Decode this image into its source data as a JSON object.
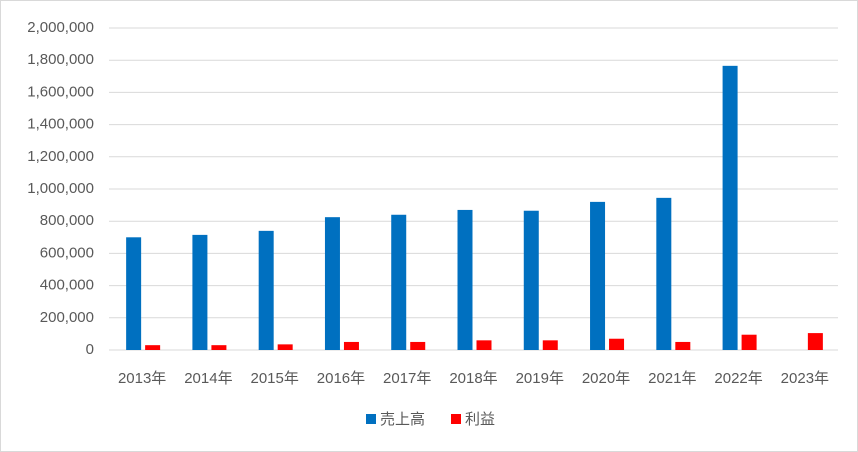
{
  "chart_data": {
    "type": "bar",
    "categories": [
      "2013年",
      "2014年",
      "2015年",
      "2016年",
      "2017年",
      "2018年",
      "2019年",
      "2020年",
      "2021年",
      "2022年",
      "2023年"
    ],
    "series": [
      {
        "name": "売上高",
        "color": "#0070c0",
        "values": [
          700000,
          715000,
          740000,
          825000,
          840000,
          870000,
          865000,
          920000,
          945000,
          1765000,
          null
        ]
      },
      {
        "name": "利益",
        "color": "#ff0000",
        "values": [
          30000,
          30000,
          35000,
          50000,
          50000,
          60000,
          60000,
          70000,
          50000,
          95000,
          105000
        ]
      }
    ],
    "ylim": [
      0,
      2000000
    ],
    "yticks": [
      0,
      {
        "value": 200000,
        "label": "200,000"
      },
      {
        "value": 400000,
        "label": "400,000"
      },
      {
        "value": 600000,
        "label": "600,000"
      },
      {
        "value": 800000,
        "label": "800,000"
      },
      {
        "value": 1000000,
        "label": "1,000,000"
      },
      {
        "value": 1200000,
        "label": "1,200,000"
      },
      {
        "value": 1400000,
        "label": "1,400,000"
      },
      {
        "value": 1600000,
        "label": "1,600,000"
      },
      {
        "value": 1800000,
        "label": "1,800,000"
      },
      {
        "value": 2000000,
        "label": "2,000,000"
      }
    ],
    "grid": true,
    "legend": "bottom"
  }
}
